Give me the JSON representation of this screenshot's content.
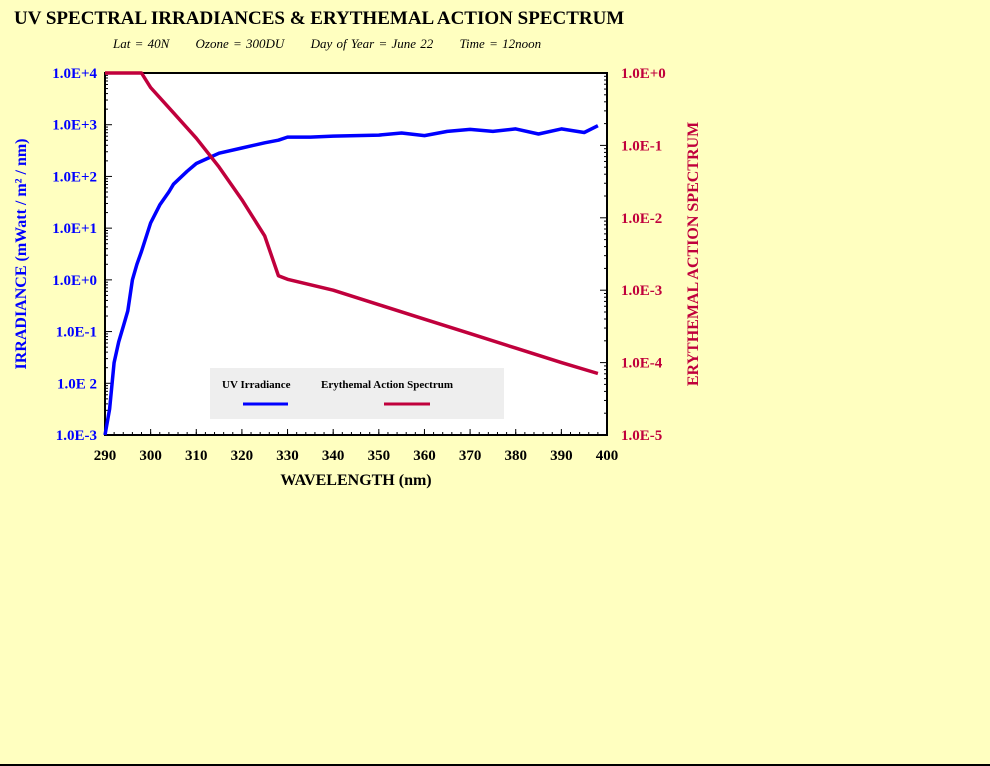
{
  "title": "UV SPECTRAL IRRADIANCES & ERYTHEMAL ACTION SPECTRUM",
  "subtitle": [
    "Lat = 40N",
    "Ozone = 300DU",
    "Day of Year = June 22",
    "Time = 12noon"
  ],
  "colors": {
    "irradiance": "#0000ff",
    "erythemal": "#c0003c",
    "background": "#ffffc0",
    "legend_bg": "#eeeeee"
  },
  "chart_data": {
    "type": "line",
    "title": "UV SPECTRAL IRRADIANCES & ERYTHEMAL ACTION SPECTRUM",
    "xlabel": "WAVELENGTH (nm)",
    "ylabel_left": "IRRADIANCE (mWatt / m² / nm)",
    "ylabel_right": "ERYTHEMAL ACTION SPECTRUM",
    "xlim": [
      290,
      400
    ],
    "ylim_left": [
      0.001,
      10000
    ],
    "ylim_right": [
      1e-05,
      1
    ],
    "yscale": "log",
    "x_ticks": [
      "290",
      "300",
      "310",
      "320",
      "330",
      "340",
      "350",
      "360",
      "370",
      "380",
      "390",
      "400"
    ],
    "y_ticks_left": [
      "1.0E+4",
      "1.0E+3",
      "1.0E+2",
      "1.0E+1",
      "1.0E+0",
      "1.0E-1",
      "1.0E 2",
      "1.0E-3"
    ],
    "y_ticks_right": [
      "1.0E+0",
      "1.0E-1",
      "1.0E-2",
      "1.0E-3",
      "1.0E-4",
      "1.0E-5"
    ],
    "legend": {
      "placement": "bottom-center",
      "entries": [
        "UV Irradiance",
        "Erythemal Action Spectrum"
      ]
    },
    "series": [
      {
        "name": "UV Irradiance",
        "axis": "left",
        "x": [
          290,
          291,
          292,
          293,
          294,
          295,
          296,
          297,
          298,
          300,
          302,
          304,
          305,
          308,
          310,
          312,
          315,
          320,
          325,
          328,
          330,
          335,
          340,
          345,
          350,
          355,
          360,
          365,
          370,
          375,
          380,
          385,
          390,
          395,
          398
        ],
        "log10_y": [
          -3,
          -2.5,
          -1.6,
          -1.2,
          -0.9,
          -0.6,
          0,
          0.3,
          0.55,
          1.1,
          1.45,
          1.7,
          1.85,
          2.1,
          2.25,
          2.33,
          2.45,
          2.55,
          2.65,
          2.7,
          2.76,
          2.76,
          2.78,
          2.79,
          2.8,
          2.84,
          2.79,
          2.87,
          2.91,
          2.87,
          2.92,
          2.82,
          2.92,
          2.85,
          2.98
        ]
      },
      {
        "name": "Erythemal Action Spectrum",
        "axis": "right",
        "x": [
          290,
          298,
          300,
          305,
          310,
          315,
          320,
          325,
          328,
          330,
          340,
          350,
          360,
          370,
          380,
          390,
          398
        ],
        "log10_y": [
          0,
          0,
          -0.2,
          -0.55,
          -0.9,
          -1.3,
          -1.75,
          -2.25,
          -2.8,
          -2.85,
          -3.0,
          -3.2,
          -3.4,
          -3.6,
          -3.8,
          -4.0,
          -4.15
        ]
      }
    ]
  }
}
